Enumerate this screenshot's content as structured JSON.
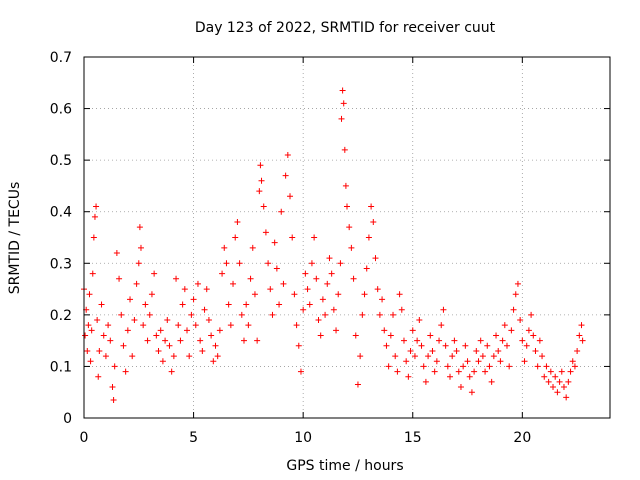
{
  "chart_data": {
    "type": "scatter",
    "title": "Day 123 of 2022, SRMTID for receiver cuut",
    "xlabel": "GPS time / hours",
    "ylabel": "SRMTID / TECUs",
    "xlim": [
      0,
      24
    ],
    "ylim": [
      0,
      0.7
    ],
    "xticks": [
      0,
      5,
      10,
      15,
      20
    ],
    "xtick_labels": [
      "0",
      "5",
      "10",
      "15",
      "20"
    ],
    "yticks": [
      0,
      0.1,
      0.2,
      0.3,
      0.4,
      0.5,
      0.6,
      0.7
    ],
    "ytick_labels": [
      "0",
      "0.1",
      "0.2",
      "0.3",
      "0.4",
      "0.5",
      "0.6",
      "0.7"
    ],
    "grid": true,
    "marker": "+",
    "color": "#ff0000",
    "series": [
      {
        "name": "SRMTID",
        "points": [
          [
            0.0,
            0.25
          ],
          [
            0.05,
            0.16
          ],
          [
            0.1,
            0.21
          ],
          [
            0.15,
            0.13
          ],
          [
            0.2,
            0.18
          ],
          [
            0.25,
            0.24
          ],
          [
            0.3,
            0.11
          ],
          [
            0.35,
            0.17
          ],
          [
            0.4,
            0.28
          ],
          [
            0.45,
            0.35
          ],
          [
            0.5,
            0.39
          ],
          [
            0.55,
            0.41
          ],
          [
            0.6,
            0.19
          ],
          [
            0.65,
            0.08
          ],
          [
            0.7,
            0.13
          ],
          [
            0.8,
            0.22
          ],
          [
            0.9,
            0.16
          ],
          [
            1.0,
            0.12
          ],
          [
            1.1,
            0.18
          ],
          [
            1.2,
            0.15
          ],
          [
            1.3,
            0.06
          ],
          [
            1.35,
            0.035
          ],
          [
            1.4,
            0.1
          ],
          [
            1.5,
            0.32
          ],
          [
            1.6,
            0.27
          ],
          [
            1.7,
            0.2
          ],
          [
            1.8,
            0.14
          ],
          [
            1.9,
            0.09
          ],
          [
            2.0,
            0.17
          ],
          [
            2.1,
            0.23
          ],
          [
            2.2,
            0.12
          ],
          [
            2.3,
            0.19
          ],
          [
            2.4,
            0.26
          ],
          [
            2.5,
            0.3
          ],
          [
            2.55,
            0.37
          ],
          [
            2.6,
            0.33
          ],
          [
            2.7,
            0.18
          ],
          [
            2.8,
            0.22
          ],
          [
            2.9,
            0.15
          ],
          [
            3.0,
            0.2
          ],
          [
            3.1,
            0.24
          ],
          [
            3.2,
            0.28
          ],
          [
            3.3,
            0.16
          ],
          [
            3.4,
            0.13
          ],
          [
            3.5,
            0.17
          ],
          [
            3.6,
            0.11
          ],
          [
            3.7,
            0.15
          ],
          [
            3.8,
            0.19
          ],
          [
            3.9,
            0.14
          ],
          [
            4.0,
            0.09
          ],
          [
            4.1,
            0.12
          ],
          [
            4.2,
            0.27
          ],
          [
            4.3,
            0.18
          ],
          [
            4.4,
            0.15
          ],
          [
            4.5,
            0.22
          ],
          [
            4.6,
            0.25
          ],
          [
            4.7,
            0.17
          ],
          [
            4.8,
            0.12
          ],
          [
            4.9,
            0.2
          ],
          [
            5.0,
            0.23
          ],
          [
            5.1,
            0.18
          ],
          [
            5.2,
            0.26
          ],
          [
            5.3,
            0.15
          ],
          [
            5.4,
            0.13
          ],
          [
            5.5,
            0.21
          ],
          [
            5.6,
            0.25
          ],
          [
            5.7,
            0.19
          ],
          [
            5.8,
            0.16
          ],
          [
            5.9,
            0.11
          ],
          [
            6.0,
            0.14
          ],
          [
            6.1,
            0.12
          ],
          [
            6.2,
            0.17
          ],
          [
            6.3,
            0.28
          ],
          [
            6.4,
            0.33
          ],
          [
            6.5,
            0.3
          ],
          [
            6.6,
            0.22
          ],
          [
            6.7,
            0.18
          ],
          [
            6.8,
            0.26
          ],
          [
            6.9,
            0.35
          ],
          [
            7.0,
            0.38
          ],
          [
            7.1,
            0.3
          ],
          [
            7.2,
            0.2
          ],
          [
            7.3,
            0.15
          ],
          [
            7.4,
            0.22
          ],
          [
            7.5,
            0.18
          ],
          [
            7.6,
            0.27
          ],
          [
            7.7,
            0.33
          ],
          [
            7.8,
            0.24
          ],
          [
            7.9,
            0.15
          ],
          [
            8.0,
            0.44
          ],
          [
            8.05,
            0.49
          ],
          [
            8.1,
            0.46
          ],
          [
            8.2,
            0.41
          ],
          [
            8.3,
            0.36
          ],
          [
            8.4,
            0.3
          ],
          [
            8.5,
            0.25
          ],
          [
            8.6,
            0.2
          ],
          [
            8.7,
            0.34
          ],
          [
            8.8,
            0.29
          ],
          [
            8.9,
            0.22
          ],
          [
            9.0,
            0.4
          ],
          [
            9.1,
            0.26
          ],
          [
            9.2,
            0.47
          ],
          [
            9.3,
            0.51
          ],
          [
            9.4,
            0.43
          ],
          [
            9.5,
            0.35
          ],
          [
            9.6,
            0.24
          ],
          [
            9.7,
            0.18
          ],
          [
            9.8,
            0.14
          ],
          [
            9.9,
            0.09
          ],
          [
            10.0,
            0.21
          ],
          [
            10.1,
            0.28
          ],
          [
            10.2,
            0.25
          ],
          [
            10.3,
            0.22
          ],
          [
            10.4,
            0.3
          ],
          [
            10.5,
            0.35
          ],
          [
            10.6,
            0.27
          ],
          [
            10.7,
            0.19
          ],
          [
            10.8,
            0.16
          ],
          [
            10.9,
            0.23
          ],
          [
            11.0,
            0.2
          ],
          [
            11.1,
            0.26
          ],
          [
            11.2,
            0.31
          ],
          [
            11.3,
            0.28
          ],
          [
            11.4,
            0.21
          ],
          [
            11.5,
            0.17
          ],
          [
            11.6,
            0.24
          ],
          [
            11.7,
            0.3
          ],
          [
            11.75,
            0.58
          ],
          [
            11.8,
            0.635
          ],
          [
            11.85,
            0.61
          ],
          [
            11.9,
            0.52
          ],
          [
            11.95,
            0.45
          ],
          [
            12.0,
            0.41
          ],
          [
            12.1,
            0.37
          ],
          [
            12.2,
            0.33
          ],
          [
            12.3,
            0.27
          ],
          [
            12.4,
            0.16
          ],
          [
            12.5,
            0.065
          ],
          [
            12.6,
            0.12
          ],
          [
            12.7,
            0.2
          ],
          [
            12.8,
            0.24
          ],
          [
            12.9,
            0.29
          ],
          [
            13.0,
            0.35
          ],
          [
            13.1,
            0.41
          ],
          [
            13.2,
            0.38
          ],
          [
            13.3,
            0.31
          ],
          [
            13.4,
            0.25
          ],
          [
            13.5,
            0.2
          ],
          [
            13.6,
            0.23
          ],
          [
            13.7,
            0.17
          ],
          [
            13.8,
            0.14
          ],
          [
            13.9,
            0.1
          ],
          [
            14.0,
            0.16
          ],
          [
            14.1,
            0.2
          ],
          [
            14.2,
            0.12
          ],
          [
            14.3,
            0.09
          ],
          [
            14.4,
            0.24
          ],
          [
            14.5,
            0.21
          ],
          [
            14.6,
            0.15
          ],
          [
            14.7,
            0.11
          ],
          [
            14.8,
            0.08
          ],
          [
            14.9,
            0.13
          ],
          [
            15.0,
            0.17
          ],
          [
            15.1,
            0.12
          ],
          [
            15.2,
            0.15
          ],
          [
            15.3,
            0.19
          ],
          [
            15.4,
            0.14
          ],
          [
            15.5,
            0.1
          ],
          [
            15.6,
            0.07
          ],
          [
            15.7,
            0.12
          ],
          [
            15.8,
            0.16
          ],
          [
            15.9,
            0.13
          ],
          [
            16.0,
            0.09
          ],
          [
            16.1,
            0.11
          ],
          [
            16.2,
            0.15
          ],
          [
            16.3,
            0.18
          ],
          [
            16.4,
            0.21
          ],
          [
            16.5,
            0.14
          ],
          [
            16.6,
            0.1
          ],
          [
            16.7,
            0.08
          ],
          [
            16.8,
            0.12
          ],
          [
            16.9,
            0.15
          ],
          [
            17.0,
            0.13
          ],
          [
            17.1,
            0.09
          ],
          [
            17.2,
            0.06
          ],
          [
            17.3,
            0.1
          ],
          [
            17.4,
            0.14
          ],
          [
            17.5,
            0.11
          ],
          [
            17.6,
            0.08
          ],
          [
            17.7,
            0.05
          ],
          [
            17.8,
            0.09
          ],
          [
            17.9,
            0.13
          ],
          [
            18.0,
            0.11
          ],
          [
            18.1,
            0.15
          ],
          [
            18.2,
            0.12
          ],
          [
            18.3,
            0.09
          ],
          [
            18.4,
            0.14
          ],
          [
            18.5,
            0.1
          ],
          [
            18.6,
            0.07
          ],
          [
            18.7,
            0.12
          ],
          [
            18.8,
            0.16
          ],
          [
            18.9,
            0.13
          ],
          [
            19.0,
            0.11
          ],
          [
            19.1,
            0.15
          ],
          [
            19.2,
            0.18
          ],
          [
            19.3,
            0.14
          ],
          [
            19.4,
            0.1
          ],
          [
            19.5,
            0.17
          ],
          [
            19.6,
            0.21
          ],
          [
            19.7,
            0.24
          ],
          [
            19.8,
            0.26
          ],
          [
            19.9,
            0.19
          ],
          [
            20.0,
            0.15
          ],
          [
            20.1,
            0.11
          ],
          [
            20.2,
            0.14
          ],
          [
            20.3,
            0.17
          ],
          [
            20.4,
            0.2
          ],
          [
            20.5,
            0.16
          ],
          [
            20.6,
            0.13
          ],
          [
            20.7,
            0.1
          ],
          [
            20.8,
            0.15
          ],
          [
            20.9,
            0.12
          ],
          [
            21.0,
            0.08
          ],
          [
            21.1,
            0.1
          ],
          [
            21.2,
            0.07
          ],
          [
            21.3,
            0.09
          ],
          [
            21.4,
            0.06
          ],
          [
            21.5,
            0.08
          ],
          [
            21.6,
            0.05
          ],
          [
            21.7,
            0.07
          ],
          [
            21.8,
            0.09
          ],
          [
            21.9,
            0.06
          ],
          [
            22.0,
            0.04
          ],
          [
            22.1,
            0.07
          ],
          [
            22.2,
            0.09
          ],
          [
            22.3,
            0.11
          ],
          [
            22.4,
            0.1
          ],
          [
            22.5,
            0.13
          ],
          [
            22.6,
            0.16
          ],
          [
            22.7,
            0.18
          ],
          [
            22.75,
            0.15
          ]
        ]
      }
    ]
  }
}
